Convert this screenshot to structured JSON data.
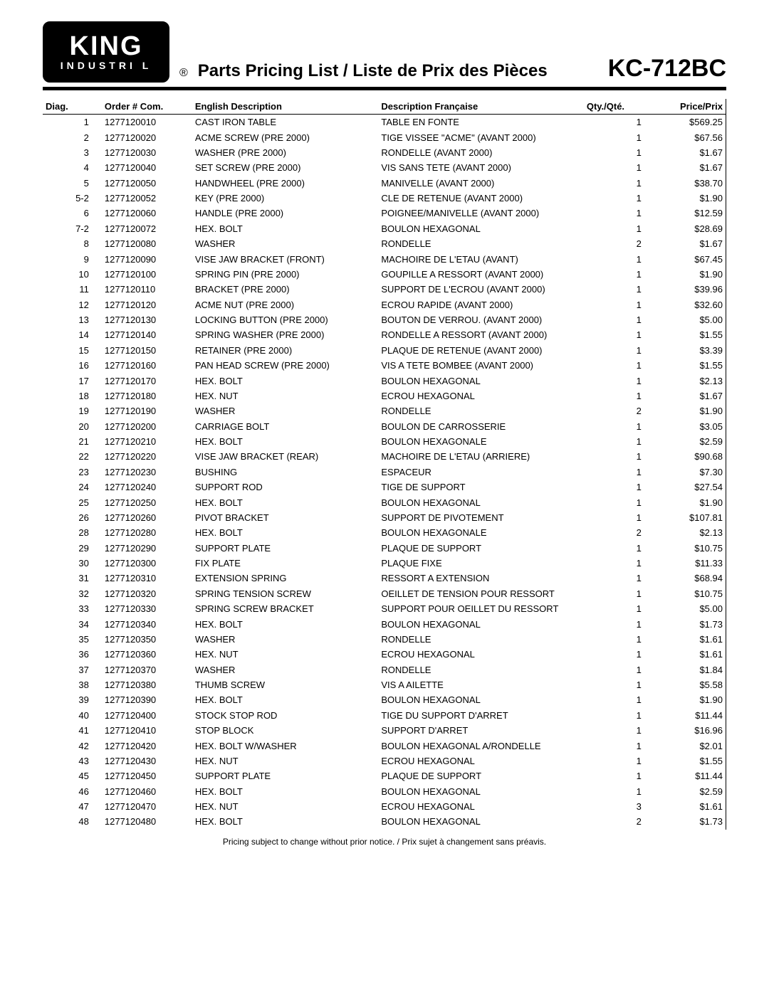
{
  "logo": {
    "line1": "KING",
    "line2": "INDUSTRI   L"
  },
  "header": {
    "title": "Parts Pricing List / Liste de Prix des Pièces",
    "model": "KC-712BC",
    "registered": "®"
  },
  "columns": {
    "diag": "Diag.",
    "order": "Order # Com.",
    "en": "English Description",
    "fr": "Description Française",
    "qty": "Qty./Qté.",
    "price": "Price/Prix"
  },
  "rows": [
    {
      "diag": "1",
      "order": "1277120010",
      "en": "CAST IRON TABLE",
      "fr": "TABLE EN FONTE",
      "qty": "1",
      "price": "$569.25"
    },
    {
      "diag": "2",
      "order": "1277120020",
      "en": "ACME SCREW (PRE 2000)",
      "fr": "TIGE VISSEE \"ACME\" (AVANT 2000)",
      "qty": "1",
      "price": "$67.56"
    },
    {
      "diag": "3",
      "order": "1277120030",
      "en": "WASHER (PRE 2000)",
      "fr": "RONDELLE (AVANT 2000)",
      "qty": "1",
      "price": "$1.67"
    },
    {
      "diag": "4",
      "order": "1277120040",
      "en": "SET SCREW (PRE 2000)",
      "fr": "VIS SANS TETE (AVANT 2000)",
      "qty": "1",
      "price": "$1.67"
    },
    {
      "diag": "5",
      "order": "1277120050",
      "en": "HANDWHEEL (PRE 2000)",
      "fr": "MANIVELLE (AVANT 2000)",
      "qty": "1",
      "price": "$38.70"
    },
    {
      "diag": "5-2",
      "order": "1277120052",
      "en": "KEY (PRE 2000)",
      "fr": "CLE DE RETENUE (AVANT 2000)",
      "qty": "1",
      "price": "$1.90"
    },
    {
      "diag": "6",
      "order": "1277120060",
      "en": "HANDLE (PRE 2000)",
      "fr": "POIGNEE/MANIVELLE (AVANT 2000)",
      "qty": "1",
      "price": "$12.59"
    },
    {
      "diag": "7-2",
      "order": "1277120072",
      "en": "HEX. BOLT",
      "fr": "BOULON HEXAGONAL",
      "qty": "1",
      "price": "$28.69"
    },
    {
      "diag": "8",
      "order": "1277120080",
      "en": "WASHER",
      "fr": "RONDELLE",
      "qty": "2",
      "price": "$1.67"
    },
    {
      "diag": "9",
      "order": "1277120090",
      "en": "VISE JAW BRACKET (FRONT)",
      "fr": "MACHOIRE DE L'ETAU (AVANT)",
      "qty": "1",
      "price": "$67.45"
    },
    {
      "diag": "10",
      "order": "1277120100",
      "en": "SPRING PIN (PRE 2000)",
      "fr": "GOUPILLE A RESSORT (AVANT 2000)",
      "qty": "1",
      "price": "$1.90"
    },
    {
      "diag": "11",
      "order": "1277120110",
      "en": "BRACKET (PRE 2000)",
      "fr": "SUPPORT DE L'ECROU (AVANT 2000)",
      "qty": "1",
      "price": "$39.96"
    },
    {
      "diag": "12",
      "order": "1277120120",
      "en": "ACME NUT (PRE 2000)",
      "fr": "ECROU RAPIDE (AVANT 2000)",
      "qty": "1",
      "price": "$32.60"
    },
    {
      "diag": "13",
      "order": "1277120130",
      "en": "LOCKING BUTTON (PRE 2000)",
      "fr": "BOUTON DE VERROU. (AVANT 2000)",
      "qty": "1",
      "price": "$5.00"
    },
    {
      "diag": "14",
      "order": "1277120140",
      "en": "SPRING WASHER (PRE 2000)",
      "fr": "RONDELLE A RESSORT (AVANT 2000)",
      "qty": "1",
      "price": "$1.55"
    },
    {
      "diag": "15",
      "order": "1277120150",
      "en": "RETAINER (PRE 2000)",
      "fr": "PLAQUE DE RETENUE (AVANT 2000)",
      "qty": "1",
      "price": "$3.39"
    },
    {
      "diag": "16",
      "order": "1277120160",
      "en": "PAN HEAD SCREW (PRE 2000)",
      "fr": "VIS A TETE BOMBEE (AVANT 2000)",
      "qty": "1",
      "price": "$1.55"
    },
    {
      "diag": "17",
      "order": "1277120170",
      "en": "HEX. BOLT",
      "fr": "BOULON HEXAGONAL",
      "qty": "1",
      "price": "$2.13"
    },
    {
      "diag": "18",
      "order": "1277120180",
      "en": "HEX. NUT",
      "fr": "ECROU HEXAGONAL",
      "qty": "1",
      "price": "$1.67"
    },
    {
      "diag": "19",
      "order": "1277120190",
      "en": "WASHER",
      "fr": "RONDELLE",
      "qty": "2",
      "price": "$1.90"
    },
    {
      "diag": "20",
      "order": "1277120200",
      "en": "CARRIAGE BOLT",
      "fr": "BOULON DE CARROSSERIE",
      "qty": "1",
      "price": "$3.05"
    },
    {
      "diag": "21",
      "order": "1277120210",
      "en": "HEX. BOLT",
      "fr": "BOULON HEXAGONALE",
      "qty": "1",
      "price": "$2.59"
    },
    {
      "diag": "22",
      "order": "1277120220",
      "en": "VISE JAW BRACKET (REAR)",
      "fr": "MACHOIRE DE L'ETAU (ARRIERE)",
      "qty": "1",
      "price": "$90.68"
    },
    {
      "diag": "23",
      "order": "1277120230",
      "en": "BUSHING",
      "fr": "ESPACEUR",
      "qty": "1",
      "price": "$7.30"
    },
    {
      "diag": "24",
      "order": "1277120240",
      "en": "SUPPORT ROD",
      "fr": "TIGE DE SUPPORT",
      "qty": "1",
      "price": "$27.54"
    },
    {
      "diag": "25",
      "order": "1277120250",
      "en": "HEX. BOLT",
      "fr": "BOULON HEXAGONAL",
      "qty": "1",
      "price": "$1.90"
    },
    {
      "diag": "26",
      "order": "1277120260",
      "en": "PIVOT BRACKET",
      "fr": "SUPPORT DE PIVOTEMENT",
      "qty": "1",
      "price": "$107.81"
    },
    {
      "diag": "28",
      "order": "1277120280",
      "en": "HEX. BOLT",
      "fr": "BOULON HEXAGONALE",
      "qty": "2",
      "price": "$2.13"
    },
    {
      "diag": "29",
      "order": "1277120290",
      "en": "SUPPORT PLATE",
      "fr": "PLAQUE DE SUPPORT",
      "qty": "1",
      "price": "$10.75"
    },
    {
      "diag": "30",
      "order": "1277120300",
      "en": "FIX PLATE",
      "fr": "PLAQUE FIXE",
      "qty": "1",
      "price": "$11.33"
    },
    {
      "diag": "31",
      "order": "1277120310",
      "en": "EXTENSION SPRING",
      "fr": "RESSORT A EXTENSION",
      "qty": "1",
      "price": "$68.94"
    },
    {
      "diag": "32",
      "order": "1277120320",
      "en": "SPRING TENSION SCREW",
      "fr": "OEILLET DE TENSION POUR RESSORT",
      "qty": "1",
      "price": "$10.75"
    },
    {
      "diag": "33",
      "order": "1277120330",
      "en": "SPRING SCREW BRACKET",
      "fr": "SUPPORT POUR OEILLET DU RESSORT",
      "qty": "1",
      "price": "$5.00"
    },
    {
      "diag": "34",
      "order": "1277120340",
      "en": "HEX. BOLT",
      "fr": "BOULON HEXAGONAL",
      "qty": "1",
      "price": "$1.73"
    },
    {
      "diag": "35",
      "order": "1277120350",
      "en": "WASHER",
      "fr": "RONDELLE",
      "qty": "1",
      "price": "$1.61"
    },
    {
      "diag": "36",
      "order": "1277120360",
      "en": "HEX. NUT",
      "fr": "ECROU HEXAGONAL",
      "qty": "1",
      "price": "$1.61"
    },
    {
      "diag": "37",
      "order": "1277120370",
      "en": "WASHER",
      "fr": "RONDELLE",
      "qty": "1",
      "price": "$1.84"
    },
    {
      "diag": "38",
      "order": "1277120380",
      "en": "THUMB SCREW",
      "fr": "VIS A AILETTE",
      "qty": "1",
      "price": "$5.58"
    },
    {
      "diag": "39",
      "order": "1277120390",
      "en": "HEX. BOLT",
      "fr": "BOULON HEXAGONAL",
      "qty": "1",
      "price": "$1.90"
    },
    {
      "diag": "40",
      "order": "1277120400",
      "en": "STOCK STOP ROD",
      "fr": "TIGE DU SUPPORT D'ARRET",
      "qty": "1",
      "price": "$11.44"
    },
    {
      "diag": "41",
      "order": "1277120410",
      "en": "STOP BLOCK",
      "fr": "SUPPORT D'ARRET",
      "qty": "1",
      "price": "$16.96"
    },
    {
      "diag": "42",
      "order": "1277120420",
      "en": "HEX. BOLT W/WASHER",
      "fr": "BOULON HEXAGONAL A/RONDELLE",
      "qty": "1",
      "price": "$2.01"
    },
    {
      "diag": "43",
      "order": "1277120430",
      "en": "HEX. NUT",
      "fr": "ECROU HEXAGONAL",
      "qty": "1",
      "price": "$1.55"
    },
    {
      "diag": "45",
      "order": "1277120450",
      "en": "SUPPORT PLATE",
      "fr": "PLAQUE DE SUPPORT",
      "qty": "1",
      "price": "$11.44"
    },
    {
      "diag": "46",
      "order": "1277120460",
      "en": "HEX. BOLT",
      "fr": "BOULON HEXAGONAL",
      "qty": "1",
      "price": "$2.59"
    },
    {
      "diag": "47",
      "order": "1277120470",
      "en": "HEX. NUT",
      "fr": "ECROU HEXAGONAL",
      "qty": "3",
      "price": "$1.61"
    },
    {
      "diag": "48",
      "order": "1277120480",
      "en": "HEX. BOLT",
      "fr": "BOULON HEXAGONAL",
      "qty": "2",
      "price": "$1.73"
    }
  ],
  "footnote": "Pricing subject to change without prior notice. / Prix sujet à changement sans préavis."
}
